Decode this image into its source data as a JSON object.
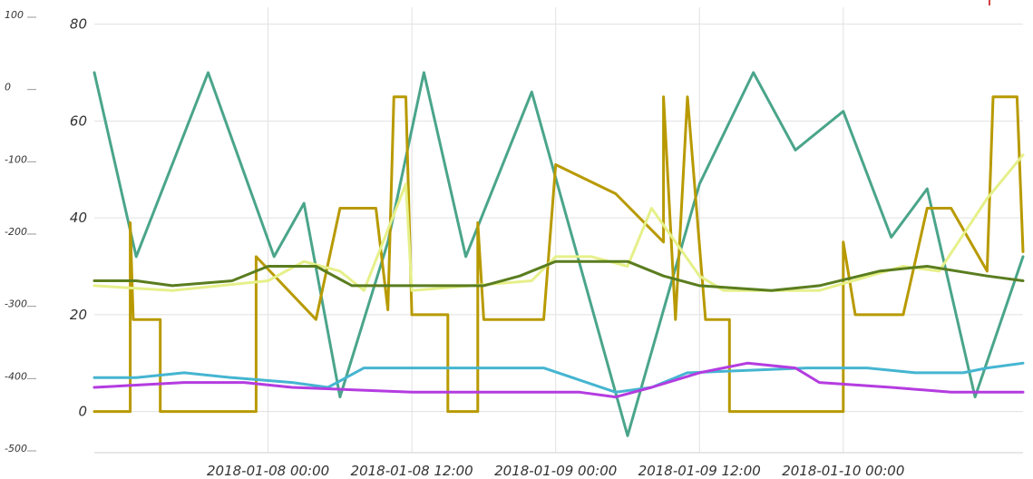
{
  "chart_data": {
    "type": "line",
    "left_outer_axis": {
      "ticks": [
        "100",
        "0",
        "-100",
        "-200",
        "-300",
        "-400",
        "-500"
      ],
      "values": [
        100,
        0,
        -100,
        -200,
        -300,
        -400,
        -500
      ],
      "range": [
        -500,
        100
      ]
    },
    "left_inner_axis": {
      "ticks": [
        "80",
        "60",
        "40",
        "20",
        "0"
      ],
      "values": [
        80,
        60,
        40,
        20,
        0
      ],
      "range": [
        -8.5,
        83.5
      ]
    },
    "x_axis": {
      "range": [
        "2018-01-07 09:30",
        "2018-01-10 15:00"
      ],
      "ticks": [
        "2018-01-08 00:00",
        "2018-01-08 12:00",
        "2018-01-09 00:00",
        "2018-01-09 12:00",
        "2018-01-10 00:00"
      ]
    },
    "grid": true,
    "series": [
      {
        "color": "#4aa58a",
        "points": [
          [
            "2018-01-07 09:30",
            70
          ],
          [
            "2018-01-07 13:00",
            32
          ],
          [
            "2018-01-07 19:00",
            70
          ],
          [
            "2018-01-08 00:30",
            32
          ],
          [
            "2018-01-08 03:00",
            43
          ],
          [
            "2018-01-08 06:00",
            3
          ],
          [
            "2018-01-08 10:00",
            35
          ],
          [
            "2018-01-08 13:00",
            70
          ],
          [
            "2018-01-08 16:30",
            32
          ],
          [
            "2018-01-08 22:00",
            66
          ],
          [
            "2018-01-09 06:00",
            -5
          ],
          [
            "2018-01-09 12:00",
            47
          ],
          [
            "2018-01-09 16:30",
            70
          ],
          [
            "2018-01-09 20:00",
            54
          ],
          [
            "2018-01-10 00:00",
            62
          ],
          [
            "2018-01-10 04:00",
            36
          ],
          [
            "2018-01-10 07:00",
            46
          ],
          [
            "2018-01-10 11:00",
            3
          ],
          [
            "2018-01-10 15:00",
            32
          ]
        ]
      },
      {
        "color": "#b89a00",
        "points": [
          [
            "2018-01-07 09:30",
            0
          ],
          [
            "2018-01-07 12:30",
            0
          ],
          [
            "2018-01-07 12:30",
            39
          ],
          [
            "2018-01-07 12:45",
            19
          ],
          [
            "2018-01-07 15:00",
            19
          ],
          [
            "2018-01-07 15:00",
            0
          ],
          [
            "2018-01-07 23:00",
            0
          ],
          [
            "2018-01-07 23:00",
            32
          ],
          [
            "2018-01-08 04:00",
            19
          ],
          [
            "2018-01-08 06:00",
            42
          ],
          [
            "2018-01-08 09:00",
            42
          ],
          [
            "2018-01-08 10:00",
            21
          ],
          [
            "2018-01-08 10:30",
            65
          ],
          [
            "2018-01-08 11:30",
            65
          ],
          [
            "2018-01-08 12:00",
            20
          ],
          [
            "2018-01-08 15:00",
            20
          ],
          [
            "2018-01-08 15:00",
            0
          ],
          [
            "2018-01-08 17:30",
            0
          ],
          [
            "2018-01-08 17:30",
            39
          ],
          [
            "2018-01-08 18:00",
            19
          ],
          [
            "2018-01-08 23:00",
            19
          ],
          [
            "2018-01-09 00:00",
            51
          ],
          [
            "2018-01-09 05:00",
            45
          ],
          [
            "2018-01-09 09:00",
            35
          ],
          [
            "2018-01-09 09:00",
            65
          ],
          [
            "2018-01-09 10:00",
            19
          ],
          [
            "2018-01-09 11:00",
            65
          ],
          [
            "2018-01-09 12:30",
            19
          ],
          [
            "2018-01-09 14:30",
            19
          ],
          [
            "2018-01-09 14:30",
            0
          ],
          [
            "2018-01-10 00:00",
            0
          ],
          [
            "2018-01-10 00:00",
            35
          ],
          [
            "2018-01-10 01:00",
            20
          ],
          [
            "2018-01-10 05:00",
            20
          ],
          [
            "2018-01-10 07:00",
            42
          ],
          [
            "2018-01-10 09:00",
            42
          ],
          [
            "2018-01-10 12:00",
            29
          ],
          [
            "2018-01-10 12:30",
            65
          ],
          [
            "2018-01-10 14:30",
            65
          ],
          [
            "2018-01-10 15:00",
            33
          ]
        ]
      },
      {
        "color": "#e6f08a",
        "points": [
          [
            "2018-01-07 09:30",
            26
          ],
          [
            "2018-01-07 16:00",
            25
          ],
          [
            "2018-01-08 00:00",
            27
          ],
          [
            "2018-01-08 03:00",
            31
          ],
          [
            "2018-01-08 06:00",
            29
          ],
          [
            "2018-01-08 08:00",
            25
          ],
          [
            "2018-01-08 11:30",
            47
          ],
          [
            "2018-01-08 12:00",
            25
          ],
          [
            "2018-01-08 22:00",
            27
          ],
          [
            "2018-01-09 00:00",
            32
          ],
          [
            "2018-01-09 03:00",
            32
          ],
          [
            "2018-01-09 06:00",
            30
          ],
          [
            "2018-01-09 08:00",
            42
          ],
          [
            "2018-01-09 12:00",
            28
          ],
          [
            "2018-01-09 14:00",
            25
          ],
          [
            "2018-01-09 22:00",
            25
          ],
          [
            "2018-01-10 05:00",
            30
          ],
          [
            "2018-01-10 08:00",
            29
          ],
          [
            "2018-01-10 12:00",
            44
          ],
          [
            "2018-01-10 15:00",
            53
          ]
        ]
      },
      {
        "color": "#5a7d1f",
        "points": [
          [
            "2018-01-07 09:30",
            27
          ],
          [
            "2018-01-07 13:00",
            27
          ],
          [
            "2018-01-07 16:00",
            26
          ],
          [
            "2018-01-07 21:00",
            27
          ],
          [
            "2018-01-08 00:00",
            30
          ],
          [
            "2018-01-08 04:00",
            30
          ],
          [
            "2018-01-08 07:00",
            26
          ],
          [
            "2018-01-08 18:00",
            26
          ],
          [
            "2018-01-08 21:00",
            28
          ],
          [
            "2018-01-09 00:00",
            31
          ],
          [
            "2018-01-09 06:00",
            31
          ],
          [
            "2018-01-09 09:00",
            28
          ],
          [
            "2018-01-09 12:00",
            26
          ],
          [
            "2018-01-09 18:00",
            25
          ],
          [
            "2018-01-09 22:00",
            26
          ],
          [
            "2018-01-10 03:00",
            29
          ],
          [
            "2018-01-10 07:00",
            30
          ],
          [
            "2018-01-10 12:00",
            28
          ],
          [
            "2018-01-10 15:00",
            27
          ]
        ]
      },
      {
        "color": "#45b5d1",
        "points": [
          [
            "2018-01-07 09:30",
            7
          ],
          [
            "2018-01-07 13:00",
            7
          ],
          [
            "2018-01-07 17:00",
            8
          ],
          [
            "2018-01-07 21:00",
            7
          ],
          [
            "2018-01-08 02:00",
            6
          ],
          [
            "2018-01-08 05:00",
            5
          ],
          [
            "2018-01-08 08:00",
            9
          ],
          [
            "2018-01-08 18:00",
            9
          ],
          [
            "2018-01-08 23:00",
            9
          ],
          [
            "2018-01-09 05:00",
            4
          ],
          [
            "2018-01-09 08:00",
            5
          ],
          [
            "2018-01-09 11:00",
            8
          ],
          [
            "2018-01-09 21:00",
            9
          ],
          [
            "2018-01-10 02:00",
            9
          ],
          [
            "2018-01-10 06:00",
            8
          ],
          [
            "2018-01-10 10:00",
            8
          ],
          [
            "2018-01-10 12:00",
            9
          ],
          [
            "2018-01-10 15:00",
            10
          ]
        ]
      },
      {
        "color": "#b43ce0",
        "points": [
          [
            "2018-01-07 09:30",
            5
          ],
          [
            "2018-01-07 17:00",
            6
          ],
          [
            "2018-01-07 22:00",
            6
          ],
          [
            "2018-01-08 02:00",
            5
          ],
          [
            "2018-01-08 12:00",
            4
          ],
          [
            "2018-01-08 20:00",
            4
          ],
          [
            "2018-01-09 02:00",
            4
          ],
          [
            "2018-01-09 05:00",
            3
          ],
          [
            "2018-01-09 08:00",
            5
          ],
          [
            "2018-01-09 12:00",
            8
          ],
          [
            "2018-01-09 16:00",
            10
          ],
          [
            "2018-01-09 20:00",
            9
          ],
          [
            "2018-01-09 22:00",
            6
          ],
          [
            "2018-01-10 04:00",
            5
          ],
          [
            "2018-01-10 09:00",
            4
          ],
          [
            "2018-01-10 15:00",
            4
          ]
        ]
      }
    ]
  }
}
